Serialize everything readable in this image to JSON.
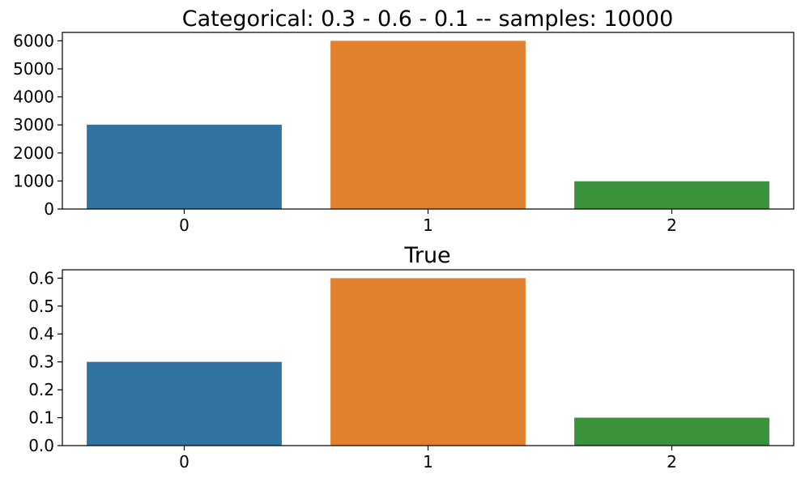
{
  "chart_data": [
    {
      "type": "bar",
      "title": "Categorical: 0.3 - 0.6 - 0.1 -- samples: 10000",
      "xlabel": "",
      "ylabel": "",
      "categories": [
        "0",
        "1",
        "2"
      ],
      "values": [
        3010,
        6000,
        990
      ],
      "ylim": [
        0,
        6300
      ],
      "yticks": [
        0,
        1000,
        2000,
        3000,
        4000,
        5000,
        6000
      ],
      "ytick_labels": [
        "0",
        "1000",
        "2000",
        "3000",
        "4000",
        "5000",
        "6000"
      ],
      "colors": [
        "#3274a1",
        "#e1812c",
        "#3a923a"
      ],
      "grid": false,
      "legend": "none"
    },
    {
      "type": "bar",
      "title": "True",
      "xlabel": "",
      "ylabel": "",
      "categories": [
        "0",
        "1",
        "2"
      ],
      "values": [
        0.3,
        0.6,
        0.1
      ],
      "ylim": [
        0,
        0.63
      ],
      "yticks": [
        0.0,
        0.1,
        0.2,
        0.3,
        0.4,
        0.5,
        0.6
      ],
      "ytick_labels": [
        "0.0",
        "0.1",
        "0.2",
        "0.3",
        "0.4",
        "0.5",
        "0.6"
      ],
      "colors": [
        "#3274a1",
        "#e1812c",
        "#3a923a"
      ],
      "grid": false,
      "legend": "none"
    }
  ]
}
